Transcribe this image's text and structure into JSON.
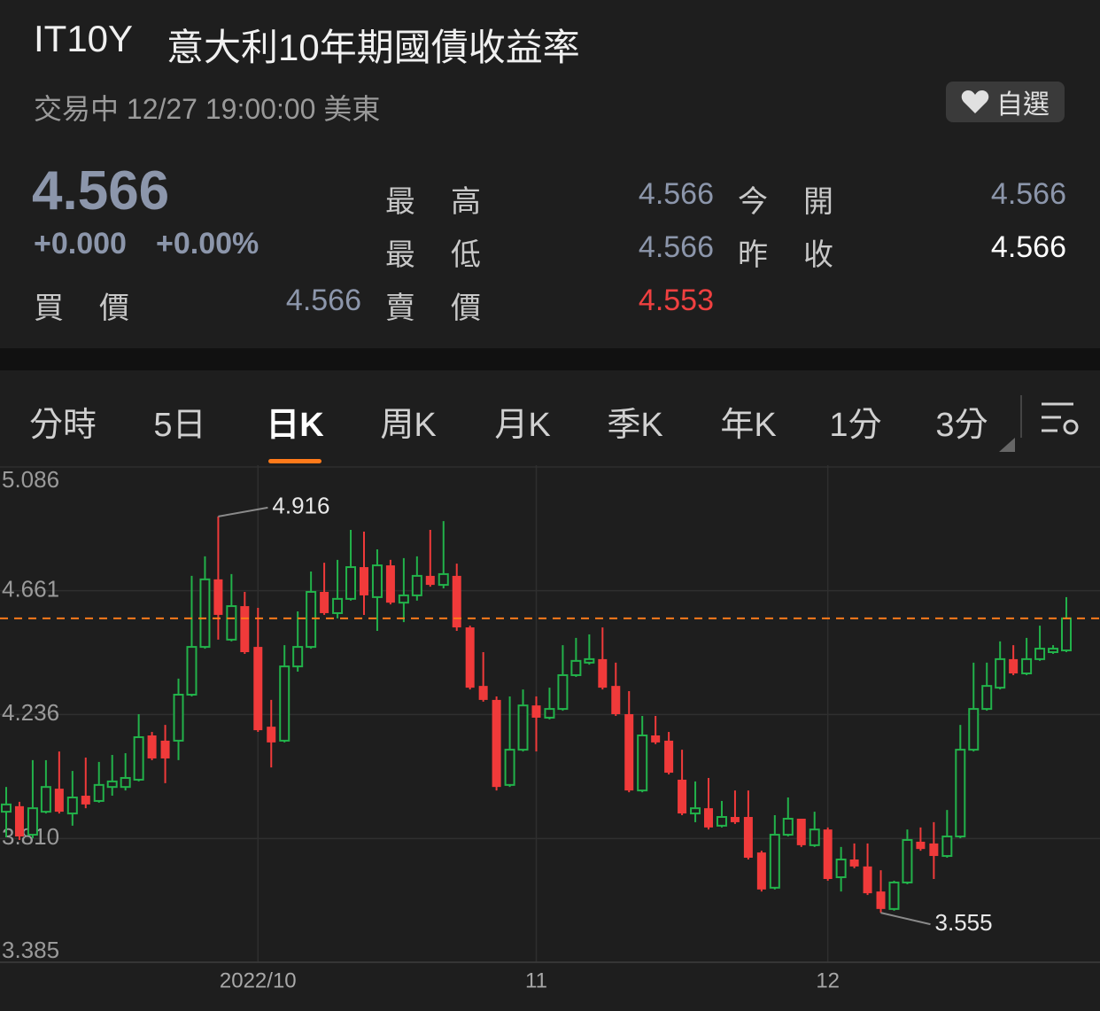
{
  "header": {
    "symbol": "IT10Y",
    "name": "意大利10年期國債收益率",
    "status": "交易中 12/27 19:00:00 美東",
    "watchlist": "自選",
    "price": "4.566",
    "change": "+0.000",
    "change_pct": "+0.00%"
  },
  "stats": [
    {
      "label": "最高",
      "value": "4.566"
    },
    {
      "label": "今開",
      "value": "4.566"
    },
    {
      "label": "最低",
      "value": "4.566"
    },
    {
      "label": "昨收",
      "value": "4.566"
    },
    {
      "label": "買價",
      "value": "4.566"
    },
    {
      "label": "賣價",
      "value": "4.553"
    }
  ],
  "tabs": [
    "分時",
    "5日",
    "日K",
    "周K",
    "月K",
    "季K",
    "年K",
    "1分",
    "3分"
  ],
  "active_tab": 2,
  "chart_data": {
    "type": "candlestick",
    "categories": [
      null,
      null,
      null,
      null,
      null,
      null,
      null,
      null,
      null,
      null,
      null,
      null,
      null,
      null,
      null,
      null,
      null,
      null,
      null,
      "2022/10",
      null,
      null,
      null,
      null,
      null,
      null,
      null,
      null,
      null,
      null,
      null,
      null,
      null,
      null,
      null,
      null,
      null,
      null,
      null,
      null,
      "11",
      null,
      null,
      null,
      null,
      null,
      null,
      null,
      null,
      null,
      null,
      null,
      null,
      null,
      null,
      null,
      null,
      null,
      null,
      null,
      null,
      null,
      "12",
      null,
      null,
      null,
      null,
      null,
      null,
      null,
      null,
      null,
      null,
      null,
      null,
      null,
      null,
      null,
      null,
      null,
      null
    ],
    "open": [
      3.902,
      3.921,
      3.823,
      3.902,
      3.981,
      3.896,
      3.957,
      3.939,
      3.987,
      3.987,
      4.012,
      4.164,
      4.146,
      4.146,
      4.304,
      4.468,
      4.7,
      4.493,
      4.608,
      4.468,
      4.194,
      4.146,
      4.401,
      4.468,
      4.657,
      4.584,
      4.633,
      4.742,
      4.639,
      4.748,
      4.62,
      4.645,
      4.712,
      4.681,
      4.712,
      4.535,
      4.334,
      4.286,
      3.994,
      4.115,
      4.267,
      4.225,
      4.255,
      4.371,
      4.414,
      4.426,
      4.334,
      4.237,
      3.975,
      4.164,
      4.146,
      4.012,
      3.896,
      3.914,
      3.854,
      3.884,
      3.884,
      3.762,
      3.641,
      3.823,
      3.878,
      3.787,
      3.841,
      3.677,
      3.738,
      3.714,
      3.628,
      3.568,
      3.659,
      3.799,
      3.793,
      3.75,
      3.817,
      4.115,
      4.255,
      4.328,
      4.426,
      4.377,
      4.426,
      4.45,
      4.456
    ],
    "high": [
      3.987,
      3.936,
      4.079,
      4.079,
      4.109,
      4.042,
      4.088,
      4.073,
      4.097,
      4.103,
      4.237,
      4.176,
      4.2,
      4.359,
      4.712,
      4.779,
      4.916,
      4.718,
      4.657,
      4.602,
      4.286,
      4.474,
      4.59,
      4.727,
      4.757,
      4.767,
      4.87,
      4.864,
      4.803,
      4.767,
      4.773,
      4.779,
      4.87,
      4.9,
      4.754,
      4.541,
      4.45,
      4.298,
      4.298,
      4.322,
      4.298,
      4.328,
      4.474,
      4.499,
      4.511,
      4.535,
      4.414,
      4.316,
      4.231,
      4.231,
      4.176,
      4.115,
      4.006,
      4.018,
      3.939,
      3.975,
      3.975,
      3.768,
      3.89,
      3.951,
      3.878,
      3.902,
      3.848,
      3.781,
      3.793,
      3.793,
      3.701,
      3.665,
      3.841,
      3.848,
      3.866,
      3.908,
      4.2,
      4.414,
      4.414,
      4.487,
      4.474,
      4.499,
      4.541,
      4.474,
      4.639
    ],
    "low": [
      3.814,
      3.805,
      3.811,
      3.896,
      3.896,
      3.854,
      3.914,
      3.933,
      3.957,
      3.975,
      4.006,
      4.079,
      4.0,
      4.079,
      4.298,
      4.462,
      4.493,
      4.487,
      4.444,
      4.176,
      4.054,
      4.14,
      4.383,
      4.462,
      4.578,
      4.566,
      4.627,
      4.578,
      4.523,
      4.614,
      4.553,
      4.627,
      4.675,
      4.669,
      4.523,
      4.322,
      4.28,
      3.975,
      3.987,
      4.109,
      4.109,
      4.219,
      4.249,
      4.365,
      4.407,
      4.322,
      4.231,
      3.969,
      3.969,
      4.134,
      4.03,
      3.89,
      3.866,
      3.841,
      3.848,
      3.86,
      3.738,
      3.628,
      3.635,
      3.817,
      3.781,
      3.781,
      3.665,
      3.628,
      3.708,
      3.616,
      3.555,
      3.562,
      3.653,
      3.768,
      3.671,
      3.744,
      3.811,
      4.109,
      4.249,
      4.322,
      4.371,
      4.371,
      4.42,
      4.444,
      4.45
    ],
    "close": [
      3.927,
      3.817,
      3.914,
      3.987,
      3.902,
      3.951,
      3.927,
      3.994,
      4.006,
      4.018,
      4.158,
      4.085,
      4.085,
      4.304,
      4.468,
      4.7,
      4.578,
      4.608,
      4.45,
      4.182,
      4.14,
      4.401,
      4.468,
      4.657,
      4.584,
      4.633,
      4.742,
      4.645,
      4.748,
      4.62,
      4.645,
      4.712,
      4.681,
      4.718,
      4.535,
      4.328,
      4.286,
      3.987,
      4.115,
      4.267,
      4.225,
      4.255,
      4.371,
      4.42,
      4.426,
      4.328,
      4.237,
      3.975,
      4.164,
      4.14,
      4.036,
      3.896,
      3.914,
      3.848,
      3.884,
      3.866,
      3.744,
      3.635,
      3.823,
      3.878,
      3.787,
      3.841,
      3.671,
      3.738,
      3.714,
      3.622,
      3.568,
      3.659,
      3.805,
      3.774,
      3.75,
      3.817,
      4.115,
      4.255,
      4.334,
      4.426,
      4.377,
      4.426,
      4.462,
      4.462,
      4.566
    ],
    "ylim": [
      3.385,
      5.086
    ],
    "yticks": [
      5.086,
      4.661,
      4.236,
      {
        "value": 3.81,
        "label": "3.810"
      },
      3.385
    ],
    "up_color": "#22b24a",
    "down_color": "#f03a3a",
    "grid": true
  }
}
